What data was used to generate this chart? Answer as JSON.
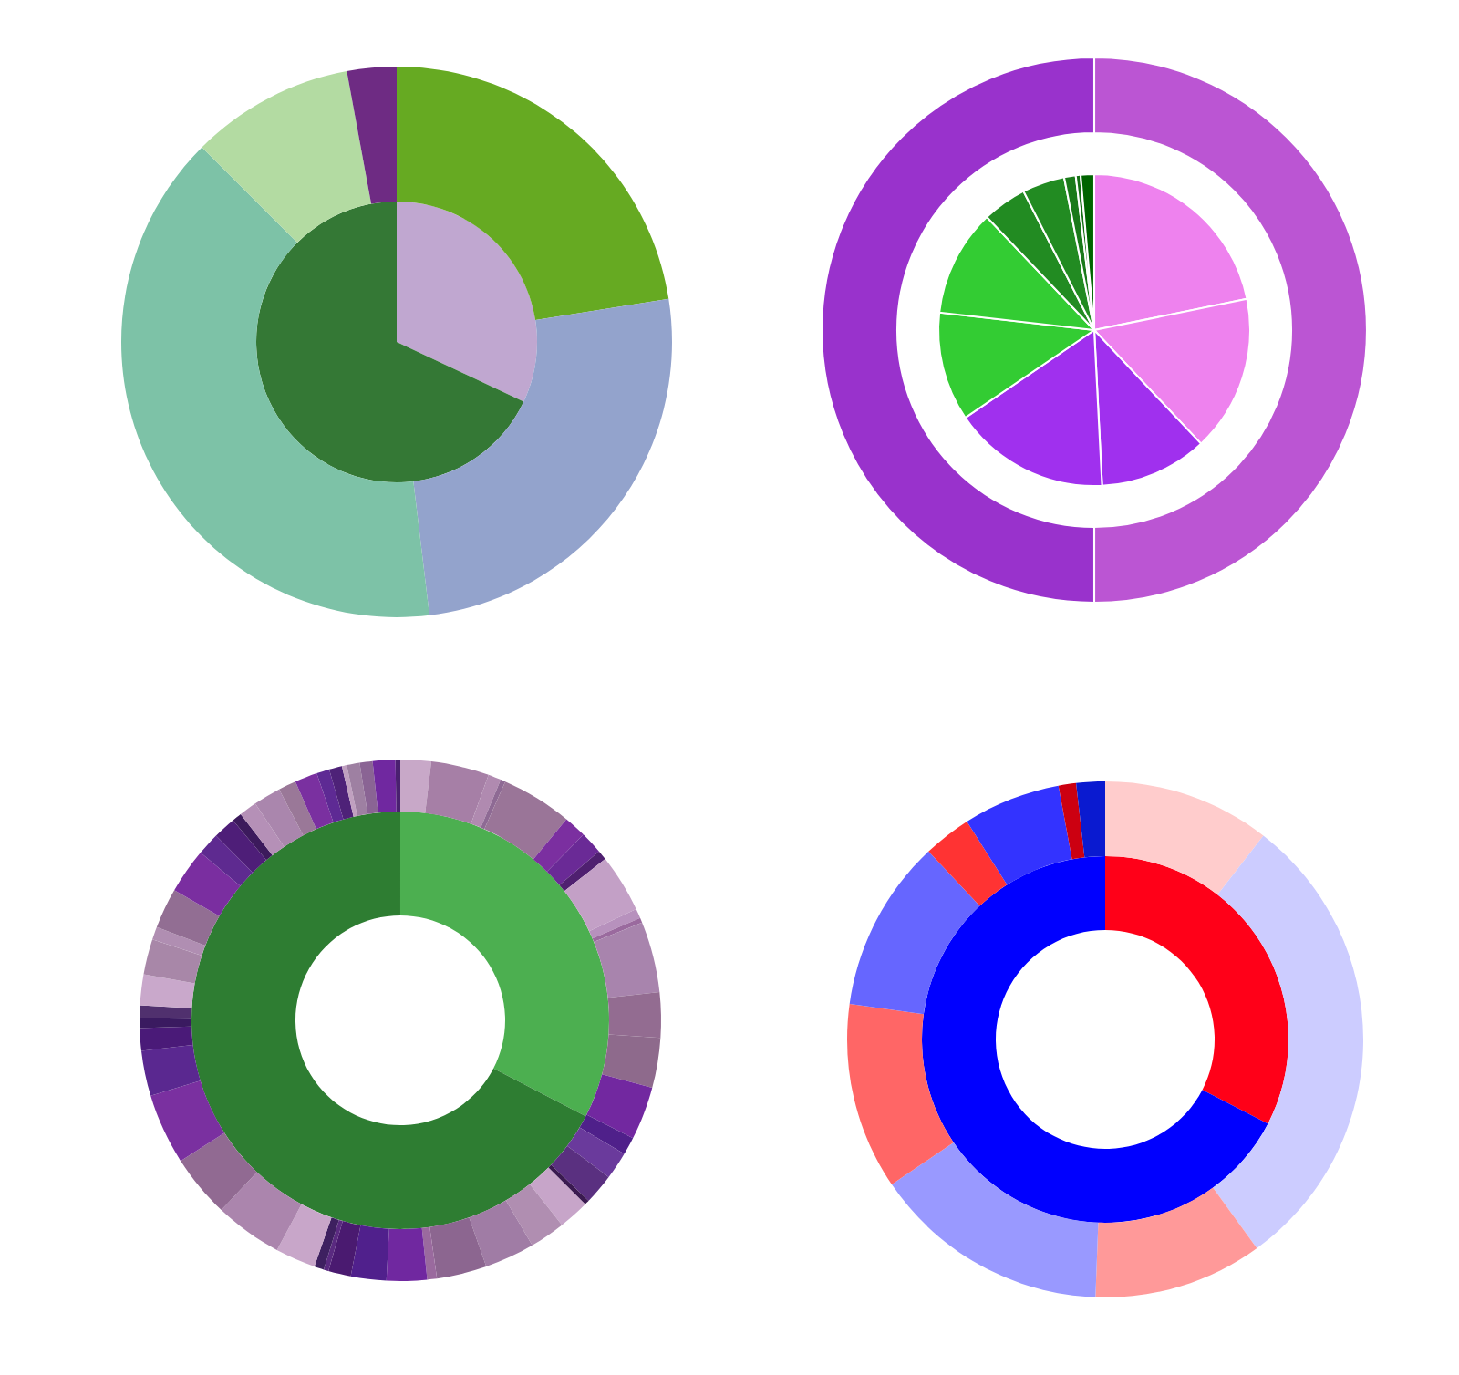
{
  "chart_data": [
    {
      "type": "donut",
      "series": [
        {
          "type": "pie",
          "values": [
            32,
            68
          ],
          "colors": [
            "#c0a7d0",
            "#347835"
          ]
        },
        {
          "values": [
            22.5,
            25.6,
            39.4,
            9.6,
            2.9
          ],
          "colors": [
            "#66aa22",
            "#93a3cc",
            "#7dc2a7",
            "#b3dba2",
            "#6e2b83"
          ]
        }
      ]
    },
    {
      "type": "donut",
      "series": [
        {
          "type": "pie",
          "values": [
            21.8,
            16.2,
            11.2,
            16.3,
            11.3,
            11.1,
            4.6,
            4.4,
            1.2,
            0.5,
            1.4
          ],
          "colors": [
            "#ee82ee",
            "#ee82ee",
            "#a030ee",
            "#a030ee",
            "#33cc33",
            "#33cc33",
            "#228b22",
            "#228b22",
            "#1a7a1a",
            "#157015",
            "#006400"
          ]
        },
        {
          "values": [
            50,
            50
          ],
          "colors": [
            "#bb55d3",
            "#9932cc"
          ]
        }
      ]
    },
    {
      "type": "donut",
      "series": [
        {
          "values": [
            32.6,
            67.4
          ],
          "colors": [
            "#4caf50",
            "#2e7d32"
          ]
        },
        {
          "values": [
            1.9,
            3.6,
            0.8,
            0.3,
            4.4,
            1.4,
            1.4,
            0.6,
            3.6,
            0.6,
            0.3,
            4.4,
            2.8,
            3.1,
            3.3,
            1.1,
            1.7,
            1.9,
            0.3,
            1.9,
            2.2,
            3.1,
            3.1,
            0.6,
            2.5,
            2.2,
            1.4,
            0.3,
            0.6,
            2.5,
            4.2,
            3.9,
            4.4,
            2.8,
            1.4,
            0.6,
            0.8,
            1.9,
            2.2,
            0.8,
            2.5,
            2.8,
            1.4,
            1.4,
            0.6,
            1.1,
            1.7,
            1.1,
            1.4,
            0.8,
            0.8,
            0.3,
            0.8,
            0.8,
            1.4,
            0.3
          ],
          "colors": [
            "#c8a8c8",
            "#a67fa6",
            "#b08ab0",
            "#8e6a94",
            "#9a7598",
            "#7b2fa0",
            "#6a2a96",
            "#4f2070",
            "#c3a0c6",
            "#b791bd",
            "#9a6a9e",
            "#a884ad",
            "#936c91",
            "#8e6a8c",
            "#7228a0",
            "#4f208a",
            "#6a3a9c",
            "#5a3080",
            "#3a1a50",
            "#c7a5c9",
            "#b08eb1",
            "#a07ca5",
            "#8c6690",
            "#9a6a9e",
            "#7028a0",
            "#50208c",
            "#4a1a70",
            "#5a2a80",
            "#3e2060",
            "#c8a6c9",
            "#ab85ad",
            "#916a92",
            "#7a30a0",
            "#5a2890",
            "#4a1a78",
            "#3a1a60",
            "#50306e",
            "#c9a8cb",
            "#a887a8",
            "#b08eb2",
            "#926e93",
            "#7a2ea0",
            "#5e2a90",
            "#4e1e78",
            "#3c1a5c",
            "#b590b7",
            "#aa86ad",
            "#9a7898",
            "#7a30a0",
            "#5e2a94",
            "#4e2278",
            "#c0a0c0",
            "#9e80a2",
            "#8a6494",
            "#7028a0",
            "#4a2070"
          ]
        }
      ]
    },
    {
      "type": "donut",
      "series": [
        {
          "values": [
            32.6,
            67.4
          ],
          "colors": [
            "#ff0018",
            "#0000ff"
          ]
        },
        {
          "values": [
            10.5,
            29.5,
            10.6,
            14.9,
            11.7,
            10.8,
            3.0,
            6.1,
            1.1,
            1.8
          ],
          "colors": [
            "#ffcccc",
            "#ccccff",
            "#ff9999",
            "#9999ff",
            "#ff6666",
            "#6666ff",
            "#ff3333",
            "#3333ff",
            "#cc0011",
            "#0a1ad0"
          ]
        }
      ]
    }
  ]
}
